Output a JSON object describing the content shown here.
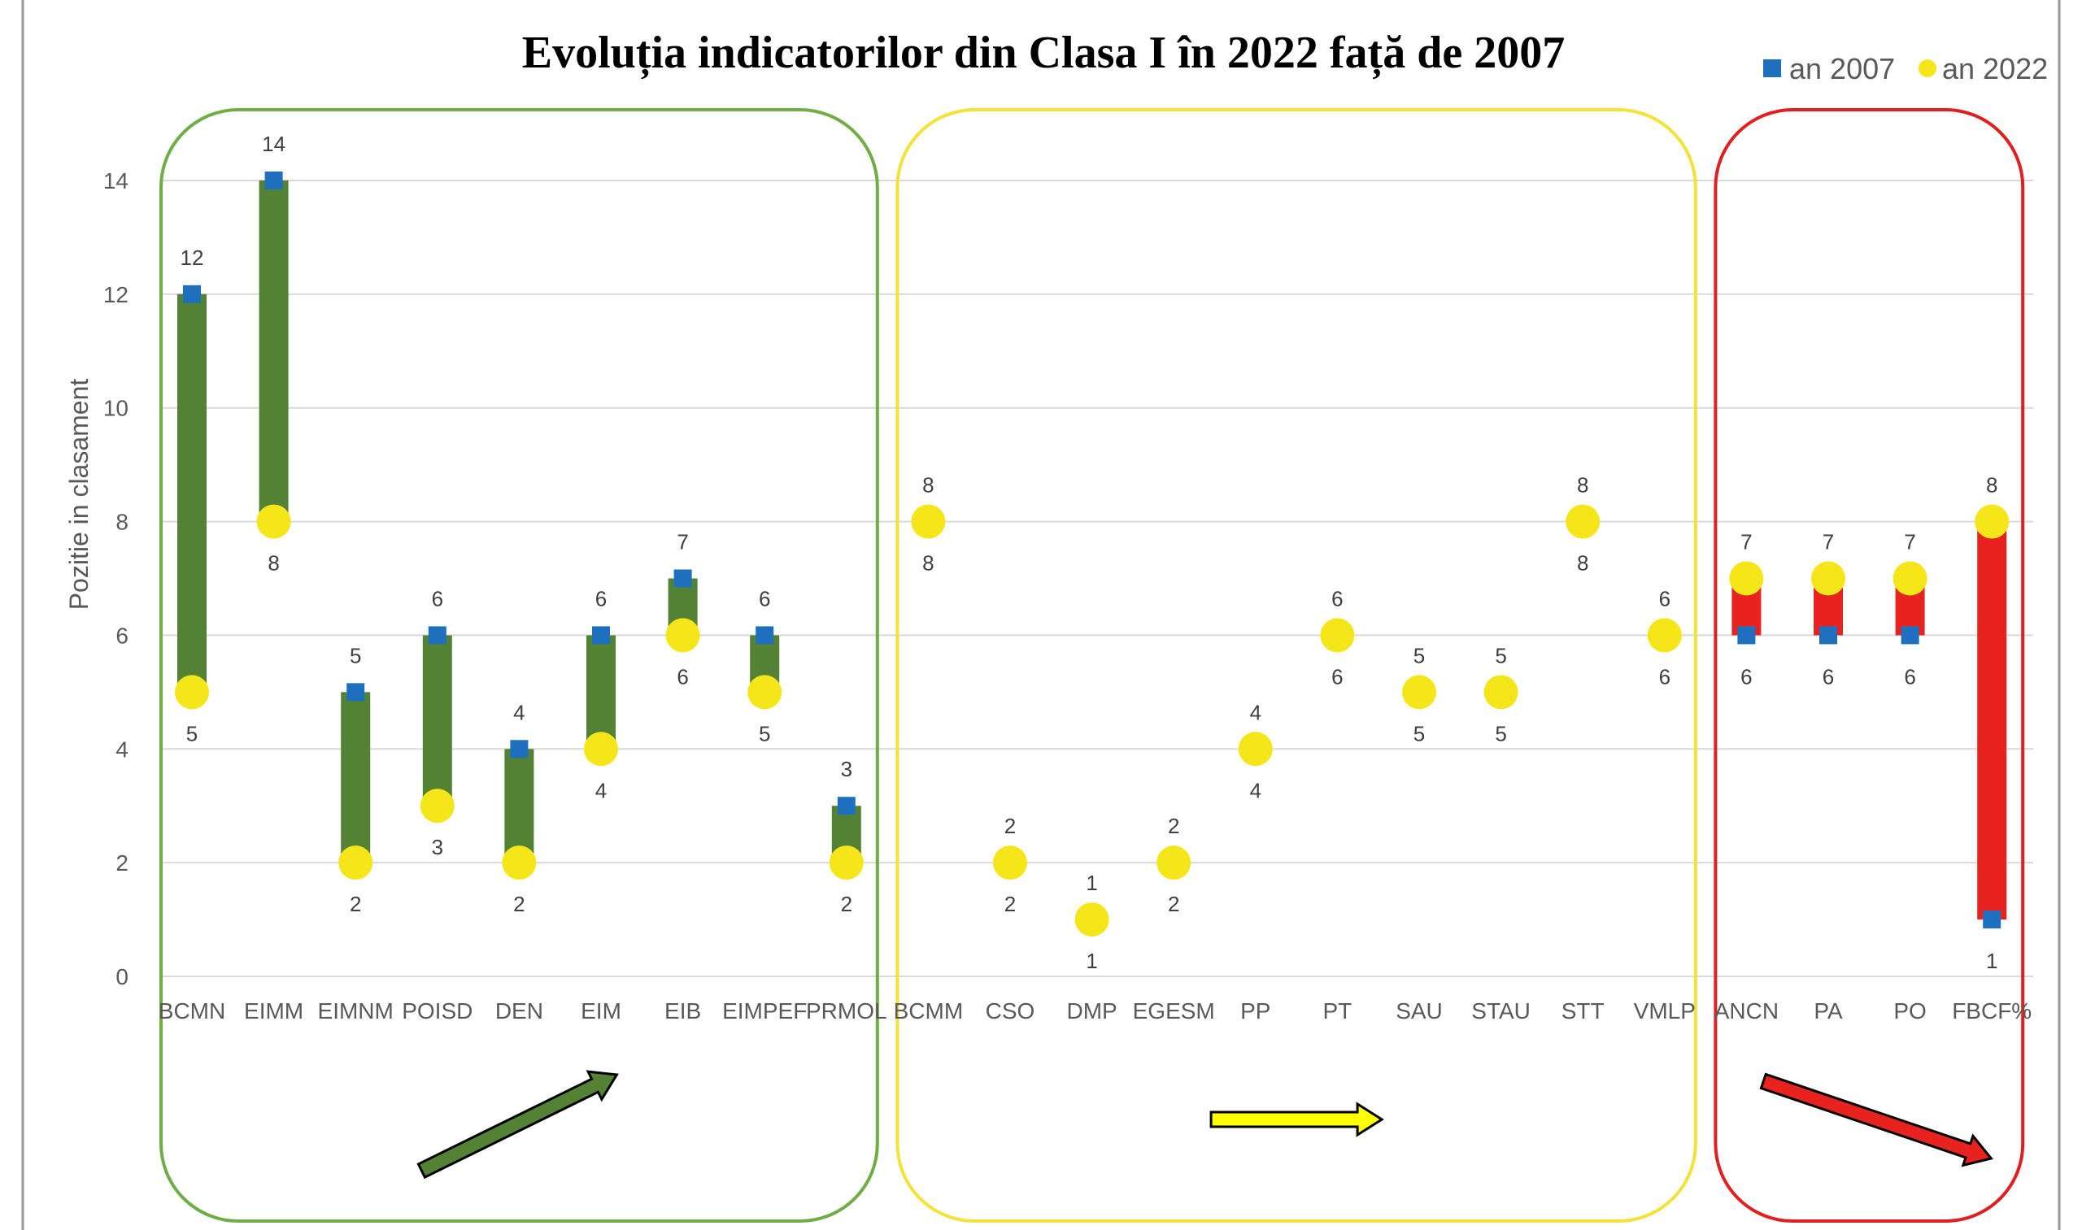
{
  "chart_data": {
    "type": "range-dot",
    "title": "Evoluția indicatorilor din Clasa I în 2022 față de 2007",
    "ylabel": "Pozitie in clasament",
    "ylim": [
      0,
      14
    ],
    "yticks": [
      0,
      2,
      4,
      6,
      8,
      10,
      12,
      14
    ],
    "grid": true,
    "legend_position": "top-right",
    "series": [
      {
        "name": "an 2007",
        "marker": "square",
        "color": "#1f6fbf"
      },
      {
        "name": "an 2022",
        "marker": "circle",
        "color": "#f5e61a"
      }
    ],
    "groups": [
      {
        "name": "green",
        "color": "#548235",
        "border_color": "#70ad47",
        "trend": "up",
        "categories": [
          "BCMN",
          "EIMM",
          "EIMNM",
          "POISD",
          "DEN",
          "EIM",
          "EIB",
          "EIMPEF",
          "PRMOL"
        ],
        "an_2007": [
          12,
          14,
          5,
          6,
          4,
          6,
          7,
          6,
          3
        ],
        "an_2022": [
          5,
          8,
          2,
          3,
          2,
          4,
          6,
          5,
          2
        ]
      },
      {
        "name": "yellow",
        "color": "#ffff00",
        "border_color": "#f2e23a",
        "trend": "flat",
        "categories": [
          "BCMM",
          "CSO",
          "DMP",
          "EGESM",
          "PP",
          "PT",
          "SAU",
          "STAU",
          "STT",
          "VMLP"
        ],
        "an_2007": [
          8,
          2,
          1,
          2,
          4,
          6,
          5,
          5,
          8,
          6
        ],
        "an_2022": [
          8,
          2,
          1,
          2,
          4,
          6,
          5,
          5,
          8,
          6
        ]
      },
      {
        "name": "red",
        "color": "#e8231f",
        "border_color": "#e02020",
        "trend": "down",
        "categories": [
          "ANCN",
          "PA",
          "PO",
          "FBCF%"
        ],
        "an_2007": [
          6,
          6,
          6,
          1
        ],
        "an_2022": [
          7,
          7,
          7,
          8
        ]
      }
    ]
  }
}
